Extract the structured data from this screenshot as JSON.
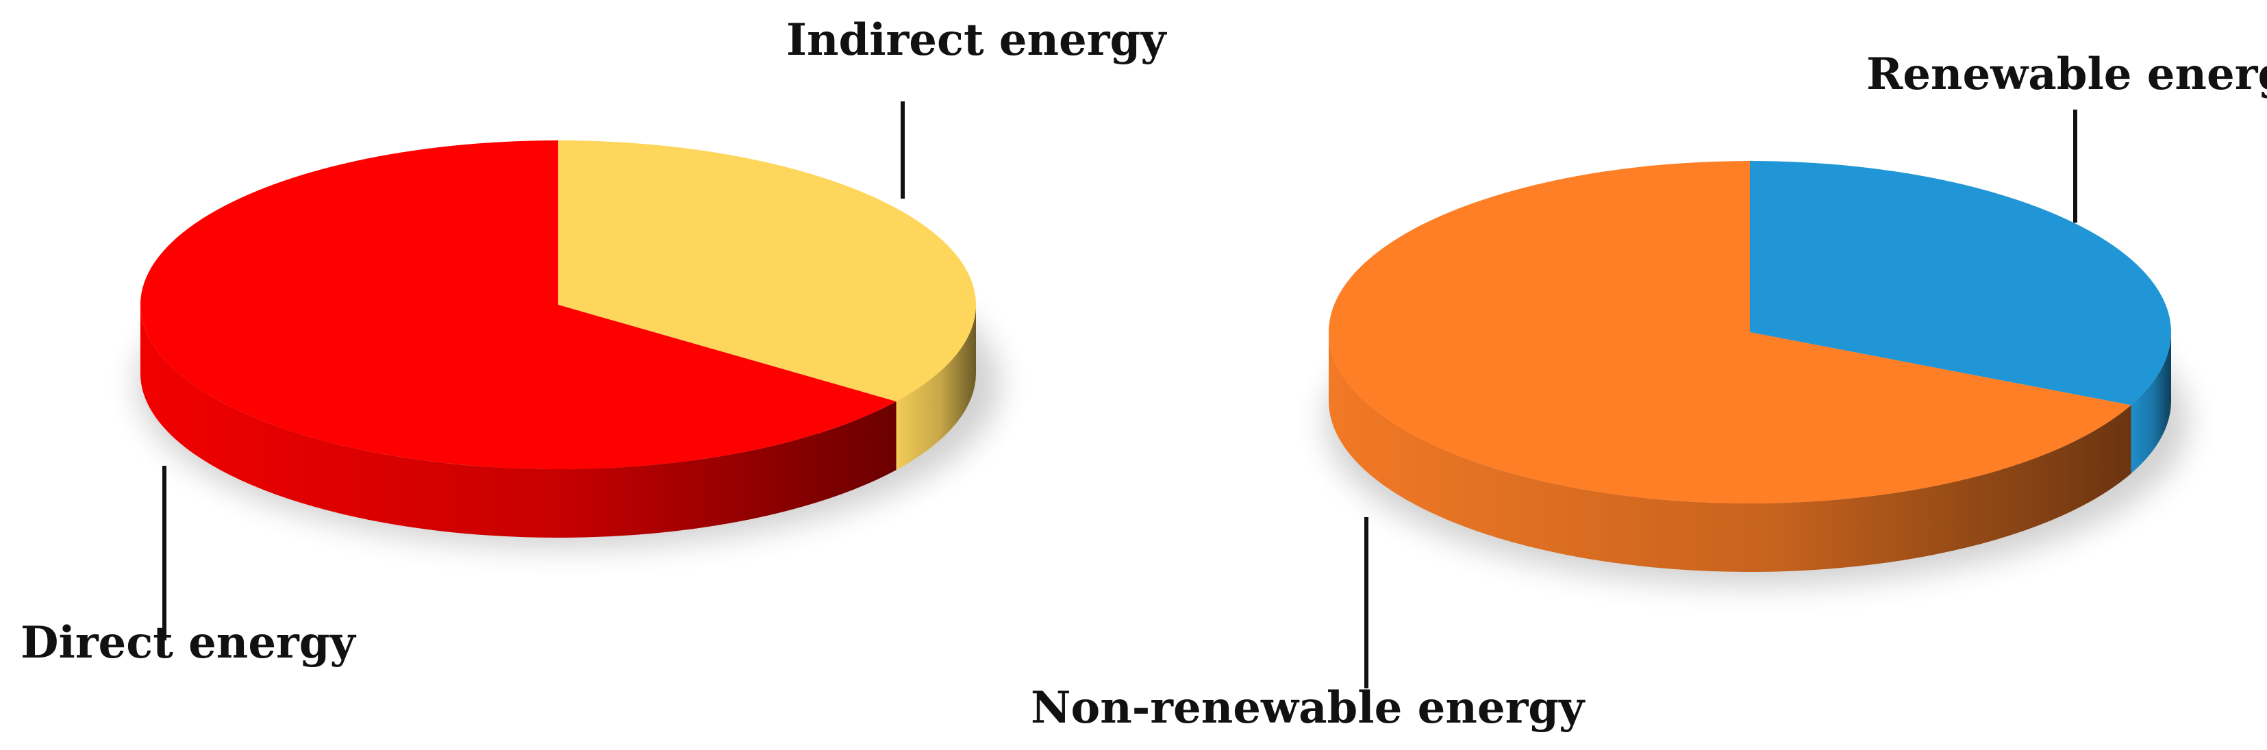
{
  "chart_data": [
    {
      "type": "pie",
      "title": "",
      "categories": [
        "Direct energy",
        "Indirect energy"
      ],
      "values": [
        65,
        35
      ],
      "colors": [
        "#ff0000",
        "#ffd65c"
      ],
      "legend": "leader-line labels"
    },
    {
      "type": "pie",
      "title": "",
      "categories": [
        "Non-renewable energy",
        "Renewable energy"
      ],
      "values": [
        68,
        32
      ],
      "colors": [
        "#ff7f27",
        "#2196d6"
      ],
      "legend": "leader-line labels"
    }
  ]
}
